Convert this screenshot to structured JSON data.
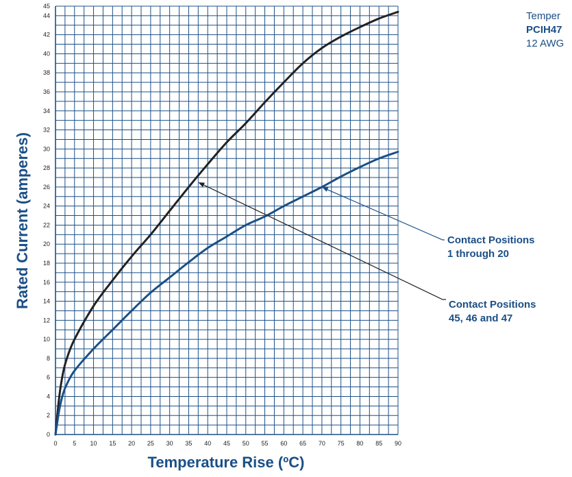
{
  "heading": {
    "line1": "Temper",
    "line2": "PCIH47",
    "line3": "12 AWG"
  },
  "colors": {
    "grid": "#1a4f86",
    "axis_text": "#1a4f86",
    "series_black": "#222222",
    "series_blue": "#1a4f86"
  },
  "chart_data": {
    "type": "line",
    "xlabel": "Temperature Rise (ºC)",
    "ylabel": "Rated Current (amperes)",
    "xlim": [
      0,
      90
    ],
    "ylim": [
      0,
      45
    ],
    "grid": true,
    "x_ticks": [
      "0",
      "5",
      "10",
      "15",
      "20",
      "25",
      "30",
      "35",
      "40",
      "45",
      "50",
      "55",
      "60",
      "65",
      "70",
      "75",
      "80",
      "85",
      "90"
    ],
    "y_ticks": [
      "0",
      "2",
      "4",
      "6",
      "8",
      "10",
      "12",
      "14",
      "16",
      "18",
      "20",
      "22",
      "24",
      "26",
      "28",
      "30",
      "32",
      "34",
      "36",
      "38",
      "40",
      "42",
      "44",
      "45"
    ],
    "series": [
      {
        "name": "Contact Positions 45, 46 and 47",
        "color": "#222222",
        "x": [
          0,
          1,
          2,
          3,
          5,
          10,
          15,
          20,
          25,
          30,
          35,
          40,
          45,
          50,
          55,
          60,
          65,
          70,
          75,
          80,
          85,
          90
        ],
        "y": [
          0,
          4,
          6.5,
          8,
          10,
          13.5,
          16.2,
          18.7,
          21,
          23.5,
          26,
          28.4,
          30.7,
          32.7,
          34.9,
          37,
          39,
          40.6,
          41.8,
          42.8,
          43.7,
          44.4
        ]
      },
      {
        "name": "Contact Positions 1 through 20",
        "color": "#1a4f86",
        "x": [
          0,
          1,
          2,
          3,
          5,
          10,
          15,
          20,
          25,
          30,
          35,
          40,
          45,
          50,
          55,
          60,
          65,
          70,
          75,
          80,
          85,
          90
        ],
        "y": [
          0,
          2.6,
          4.3,
          5.3,
          6.7,
          9,
          11,
          13,
          14.9,
          16.5,
          18.1,
          19.6,
          20.8,
          22,
          22.9,
          24,
          25,
          26,
          27.1,
          28.1,
          29,
          29.7
        ]
      }
    ],
    "annotations": [
      {
        "id": "blue",
        "lines": [
          "Contact Positions",
          "1 through 20"
        ],
        "points_to_x": 70,
        "points_to_y": 26
      },
      {
        "id": "black",
        "lines": [
          "Contact Positions",
          "45, 46 and 47"
        ],
        "points_to_x": 37.5,
        "points_to_y": 26.5
      }
    ]
  }
}
